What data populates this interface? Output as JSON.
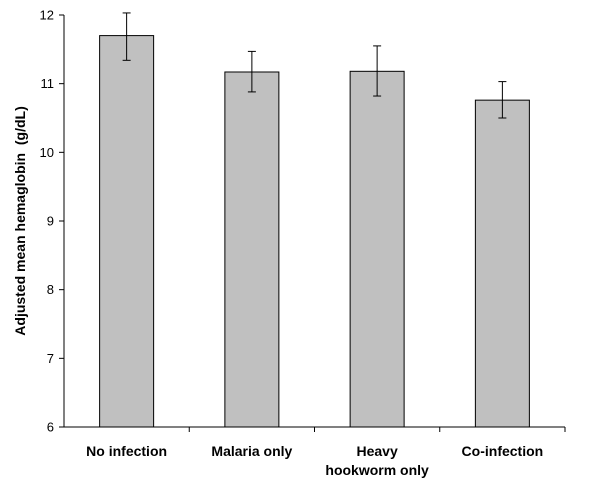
{
  "chart_data": {
    "type": "bar",
    "categories": [
      "No infection",
      "Malaria only",
      "Heavy hookworm only",
      "Co-infection"
    ],
    "category_lines": [
      [
        "No infection"
      ],
      [
        "Malaria only"
      ],
      [
        "Heavy",
        "hookworm only"
      ],
      [
        "Co-infection"
      ]
    ],
    "values": [
      11.7,
      11.17,
      11.18,
      10.76
    ],
    "error_low": [
      11.34,
      10.88,
      10.82,
      10.5
    ],
    "error_high": [
      12.03,
      11.47,
      11.55,
      11.03
    ],
    "title": "",
    "xlabel": "",
    "ylabel": "Adjusted mean hemaglobin  (g/dL)",
    "ylim": [
      6,
      12
    ],
    "yticks": [
      6,
      7,
      8,
      9,
      10,
      11,
      12
    ],
    "grid": false,
    "bar_color": "#c0c0c0",
    "bar_edge_color": "#000000"
  }
}
